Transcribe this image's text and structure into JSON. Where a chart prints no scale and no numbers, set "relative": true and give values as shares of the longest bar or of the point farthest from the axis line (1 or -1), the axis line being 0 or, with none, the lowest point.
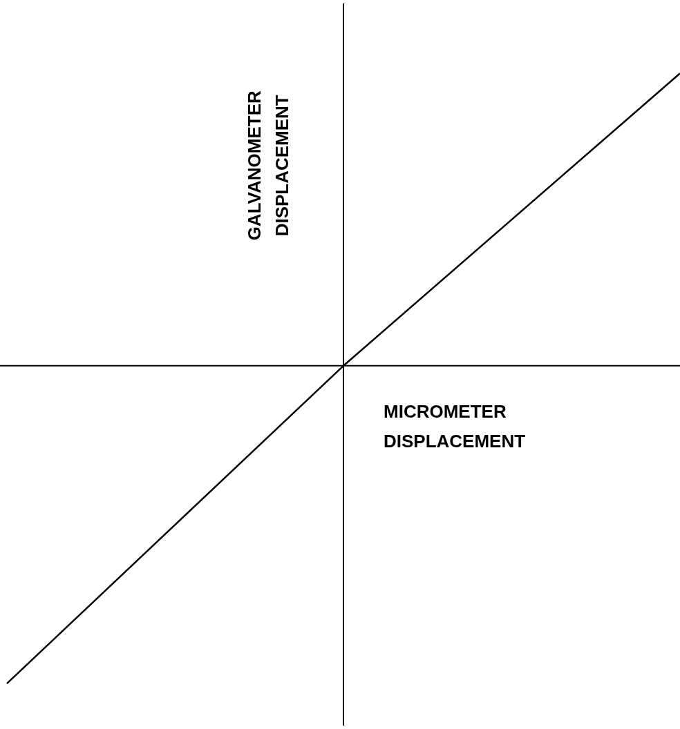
{
  "chart_data": {
    "type": "line",
    "relative": true,
    "xlabel": "MICROMETER DISPLACEMENT",
    "ylabel": "GALVANOMETER DISPLACEMENT",
    "categories": [
      null,
      null,
      null
    ],
    "series": [
      {
        "color": "#000000",
        "values": [
          -1,
          0,
          0.92
        ]
      }
    ],
    "marker": "none",
    "line_style": "solid",
    "legend": false
  }
}
